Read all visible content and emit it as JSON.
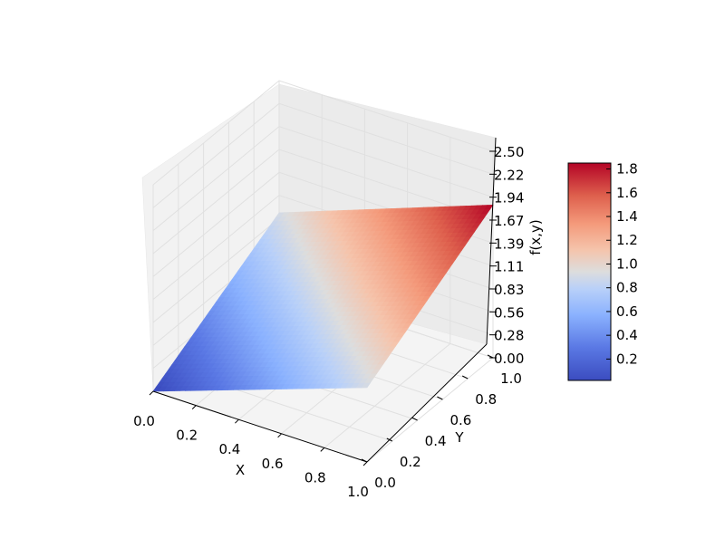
{
  "chart_data": {
    "type": "surface3d",
    "title": "",
    "xlabel": "X",
    "ylabel": "Y",
    "zlabel": "f(x,y)",
    "x_ticks": [
      "0.0",
      "0.2",
      "0.4",
      "0.6",
      "0.8",
      "1.0"
    ],
    "y_ticks": [
      "0.0",
      "0.2",
      "0.4",
      "0.6",
      "0.8",
      "1.0"
    ],
    "z_ticks": [
      "0.00",
      "0.28",
      "0.56",
      "0.83",
      "1.11",
      "1.39",
      "1.67",
      "1.94",
      "2.22",
      "2.50"
    ],
    "xlim": [
      0,
      1
    ],
    "ylim": [
      0,
      1
    ],
    "zlim": [
      0,
      2.5
    ],
    "grid": true,
    "colormap": "coolwarm",
    "surface": {
      "x": [
        0.0,
        1.0
      ],
      "y": [
        0.0,
        1.0
      ],
      "z": [
        [
          0.0,
          0.9
        ],
        [
          0.9,
          1.85
        ]
      ]
    },
    "colorbar": {
      "range": [
        0.02,
        1.85
      ],
      "ticks": [
        "0.2",
        "0.4",
        "0.6",
        "0.8",
        "1.0",
        "1.2",
        "1.4",
        "1.6",
        "1.8"
      ],
      "low_color": "#3b4cc0",
      "mid_color": "#dddddd",
      "high_color": "#b40426"
    }
  }
}
